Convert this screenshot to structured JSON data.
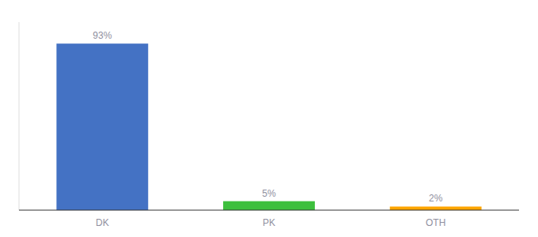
{
  "chart_data": {
    "type": "bar",
    "categories": [
      "DK",
      "PK",
      "OTH"
    ],
    "values": [
      93,
      5,
      2
    ],
    "value_labels": [
      "93%",
      "5%",
      "2%"
    ],
    "colors": [
      "#4472C4",
      "#3DBF3D",
      "#FFA500"
    ],
    "ylim": [
      0,
      105
    ],
    "data_labels": true,
    "tick_labels": "x",
    "grid": false
  }
}
